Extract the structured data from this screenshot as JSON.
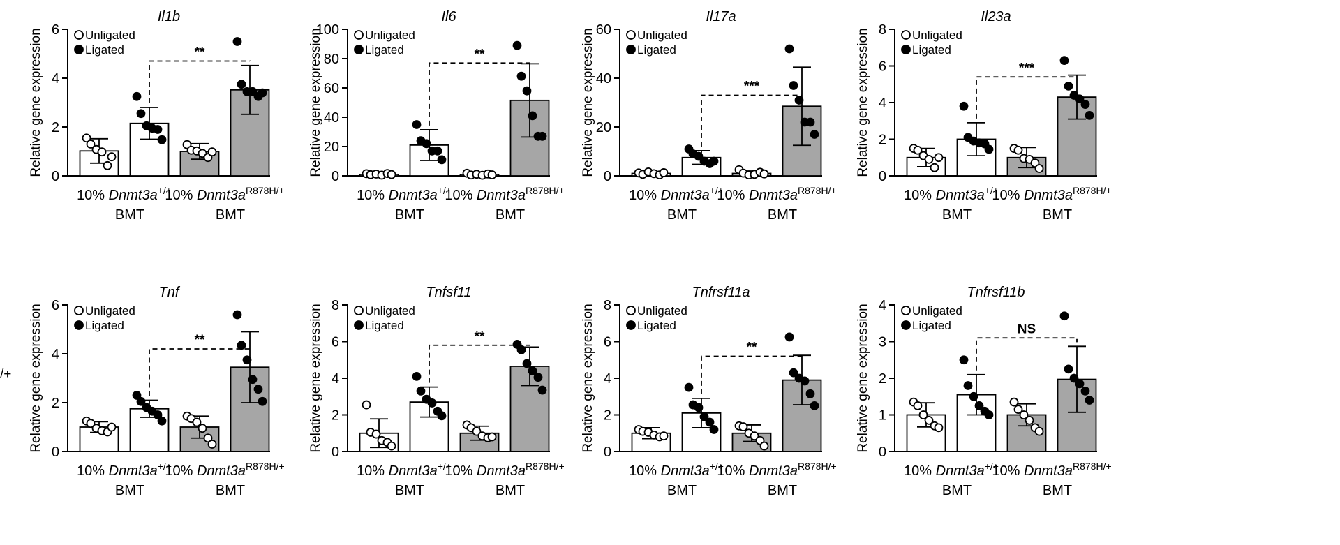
{
  "figure": {
    "stray_text": "/+",
    "legend": {
      "unligated": "Unligated",
      "ligated": "Ligated"
    },
    "ylabel": "Relative gene expression",
    "xgroups": [
      {
        "pct": "10%",
        "gene": "Dnmt3a",
        "sup": "+/+",
        "bmt": "BMT"
      },
      {
        "pct": "10%",
        "gene": "Dnmt3a",
        "sup": "R878H/+",
        "bmt": "BMT"
      }
    ],
    "colors": {
      "open_bar": "#ffffff",
      "ligated_bar": "#a6a6a6",
      "ink": "#000000"
    }
  },
  "chart_data": [
    {
      "type": "bar",
      "title": "Il1b",
      "ylabel": "Relative gene expression",
      "ylim": [
        0,
        6
      ],
      "yticks": [
        0,
        2,
        4,
        6
      ],
      "categories": [
        "Dnmt3a+/+ Unligated",
        "Dnmt3a+/+ Ligated",
        "Dnmt3aR878H/+ Unligated",
        "Dnmt3aR878H/+ Ligated"
      ],
      "values": [
        1.02,
        2.15,
        1.0,
        3.52
      ],
      "errors": [
        0.5,
        0.65,
        0.32,
        1.0
      ],
      "points": [
        [
          1.55,
          1.3,
          1.08,
          0.98,
          0.42,
          0.78
        ],
        [
          3.25,
          2.55,
          2.05,
          1.95,
          1.9,
          1.48
        ],
        [
          1.28,
          1.05,
          1.02,
          0.92,
          0.75,
          0.98
        ],
        [
          5.5,
          3.75,
          3.45,
          3.45,
          3.25,
          3.4
        ]
      ],
      "comparison": {
        "from": 1,
        "to": 3,
        "label": "**",
        "y": 4.7
      }
    },
    {
      "type": "bar",
      "title": "Il6",
      "ylabel": "Relative gene expression",
      "ylim": [
        0,
        100
      ],
      "yticks": [
        0,
        20,
        40,
        60,
        80,
        100
      ],
      "categories": [
        "Dnmt3a+/+ Unligated",
        "Dnmt3a+/+ Ligated",
        "Dnmt3aR878H/+ Unligated",
        "Dnmt3aR878H/+ Ligated"
      ],
      "values": [
        1.0,
        21.0,
        1.0,
        51.5
      ],
      "errors": [
        0.8,
        10.5,
        0.8,
        25.0
      ],
      "points": [
        [
          1.5,
          0.8,
          1.2,
          0.5,
          1.6,
          0.9
        ],
        [
          35,
          24,
          22,
          17,
          17,
          11
        ],
        [
          1.8,
          0.6,
          1.1,
          0.4,
          1.3,
          0.7
        ],
        [
          89,
          68,
          58,
          41,
          27,
          27
        ]
      ],
      "comparison": {
        "from": 1,
        "to": 3,
        "label": "**",
        "y": 77
      }
    },
    {
      "type": "bar",
      "title": "Il17a",
      "ylabel": "Relative gene expression",
      "ylim": [
        0,
        60
      ],
      "yticks": [
        0,
        20,
        40,
        60
      ],
      "categories": [
        "Dnmt3a+/+ Unligated",
        "Dnmt3a+/+ Ligated",
        "Dnmt3aR878H/+ Unligated",
        "Dnmt3aR878H/+ Ligated"
      ],
      "values": [
        1.0,
        7.5,
        1.0,
        28.5
      ],
      "errors": [
        0.8,
        2.8,
        1.0,
        16.0
      ],
      "points": [
        [
          1.2,
          0.6,
          1.6,
          0.9,
          0.4,
          1.3
        ],
        [
          11,
          9,
          8,
          6,
          5,
          6
        ],
        [
          2.5,
          1.1,
          0.4,
          0.6,
          1.5,
          0.8
        ],
        [
          52,
          37,
          31,
          22,
          22,
          17
        ]
      ],
      "comparison": {
        "from": 1,
        "to": 3,
        "label": "***",
        "y": 33
      }
    },
    {
      "type": "bar",
      "title": "Il23a",
      "ylabel": "Relative gene expression",
      "ylim": [
        0,
        8
      ],
      "yticks": [
        0,
        2,
        4,
        6,
        8
      ],
      "categories": [
        "Dnmt3a+/+ Unligated",
        "Dnmt3a+/+ Ligated",
        "Dnmt3aR878H/+ Unligated",
        "Dnmt3aR878H/+ Ligated"
      ],
      "values": [
        1.0,
        2.0,
        1.0,
        4.3
      ],
      "errors": [
        0.5,
        0.9,
        0.55,
        1.2
      ],
      "points": [
        [
          1.5,
          1.4,
          1.1,
          0.9,
          0.45,
          1.0
        ],
        [
          3.8,
          2.1,
          1.9,
          1.8,
          1.75,
          1.45
        ],
        [
          1.5,
          1.4,
          0.95,
          0.9,
          0.7,
          0.4
        ],
        [
          6.3,
          4.9,
          4.4,
          4.2,
          3.9,
          3.3
        ]
      ],
      "comparison": {
        "from": 1,
        "to": 3,
        "label": "***",
        "y": 5.4
      }
    },
    {
      "type": "bar",
      "title": "Tnf",
      "ylabel": "Relative gene expression",
      "ylim": [
        0,
        6
      ],
      "yticks": [
        0,
        2,
        4,
        6
      ],
      "categories": [
        "Dnmt3a+/+ Unligated",
        "Dnmt3a+/+ Ligated",
        "Dnmt3aR878H/+ Unligated",
        "Dnmt3aR878H/+ Ligated"
      ],
      "values": [
        1.0,
        1.75,
        1.0,
        3.45
      ],
      "errors": [
        0.22,
        0.35,
        0.45,
        1.45
      ],
      "points": [
        [
          1.25,
          1.15,
          0.95,
          0.85,
          0.8,
          1.0
        ],
        [
          2.3,
          2.05,
          1.8,
          1.65,
          1.5,
          1.25
        ],
        [
          1.45,
          1.35,
          1.2,
          0.95,
          0.55,
          0.3
        ],
        [
          5.6,
          4.35,
          3.75,
          2.95,
          2.55,
          2.05
        ]
      ],
      "comparison": {
        "from": 1,
        "to": 3,
        "label": "**",
        "y": 4.2
      }
    },
    {
      "type": "bar",
      "title": "Tnfsf11",
      "ylabel": "Relative gene expression",
      "ylim": [
        0,
        8
      ],
      "yticks": [
        0,
        2,
        4,
        6,
        8
      ],
      "categories": [
        "Dnmt3a+/+ Unligated",
        "Dnmt3a+/+ Ligated",
        "Dnmt3aR878H/+ Unligated",
        "Dnmt3aR878H/+ Ligated"
      ],
      "values": [
        1.0,
        2.7,
        1.0,
        4.65
      ],
      "errors": [
        0.78,
        0.82,
        0.38,
        1.05
      ],
      "points": [
        [
          2.55,
          1.05,
          0.95,
          0.6,
          0.5,
          0.3
        ],
        [
          4.1,
          3.3,
          2.85,
          2.65,
          2.2,
          1.95
        ],
        [
          1.45,
          1.3,
          1.1,
          0.85,
          0.75,
          0.8
        ],
        [
          5.85,
          5.55,
          4.8,
          4.4,
          4.05,
          3.35
        ]
      ],
      "comparison": {
        "from": 1,
        "to": 3,
        "label": "**",
        "y": 5.8
      }
    },
    {
      "type": "bar",
      "title": "Tnfrsf11a",
      "ylabel": "Relative gene expression",
      "ylim": [
        0,
        8
      ],
      "yticks": [
        0,
        2,
        4,
        6,
        8
      ],
      "categories": [
        "Dnmt3a+/+ Unligated",
        "Dnmt3a+/+ Ligated",
        "Dnmt3aR878H/+ Unligated",
        "Dnmt3aR878H/+ Ligated"
      ],
      "values": [
        1.0,
        2.1,
        1.0,
        3.9
      ],
      "errors": [
        0.3,
        0.8,
        0.45,
        1.35
      ],
      "points": [
        [
          1.2,
          1.1,
          1.05,
          0.9,
          0.8,
          0.85
        ],
        [
          3.5,
          2.55,
          2.4,
          1.9,
          1.6,
          1.2
        ],
        [
          1.4,
          1.35,
          1.0,
          0.85,
          0.6,
          0.3
        ],
        [
          6.25,
          4.3,
          4.0,
          3.85,
          3.15,
          2.5
        ]
      ],
      "comparison": {
        "from": 1,
        "to": 3,
        "label": "**",
        "y": 5.2
      }
    },
    {
      "type": "bar",
      "title": "Tnfrsf11b",
      "ylabel": "Relative gene expression",
      "ylim": [
        0,
        4
      ],
      "yticks": [
        0,
        1,
        2,
        3,
        4
      ],
      "categories": [
        "Dnmt3a+/+ Unligated",
        "Dnmt3a+/+ Ligated",
        "Dnmt3aR878H/+ Unligated",
        "Dnmt3aR878H/+ Ligated"
      ],
      "values": [
        1.0,
        1.55,
        1.0,
        1.97
      ],
      "errors": [
        0.33,
        0.55,
        0.3,
        0.9
      ],
      "points": [
        [
          1.35,
          1.25,
          1.0,
          0.85,
          0.7,
          0.65
        ],
        [
          2.5,
          1.8,
          1.5,
          1.25,
          1.1,
          1.0
        ],
        [
          1.35,
          1.15,
          1.0,
          0.85,
          0.65,
          0.55
        ],
        [
          3.7,
          2.25,
          2.0,
          1.85,
          1.65,
          1.4
        ]
      ],
      "comparison": {
        "from": 1,
        "to": 3,
        "label": "NS",
        "y": 3.1
      }
    }
  ]
}
